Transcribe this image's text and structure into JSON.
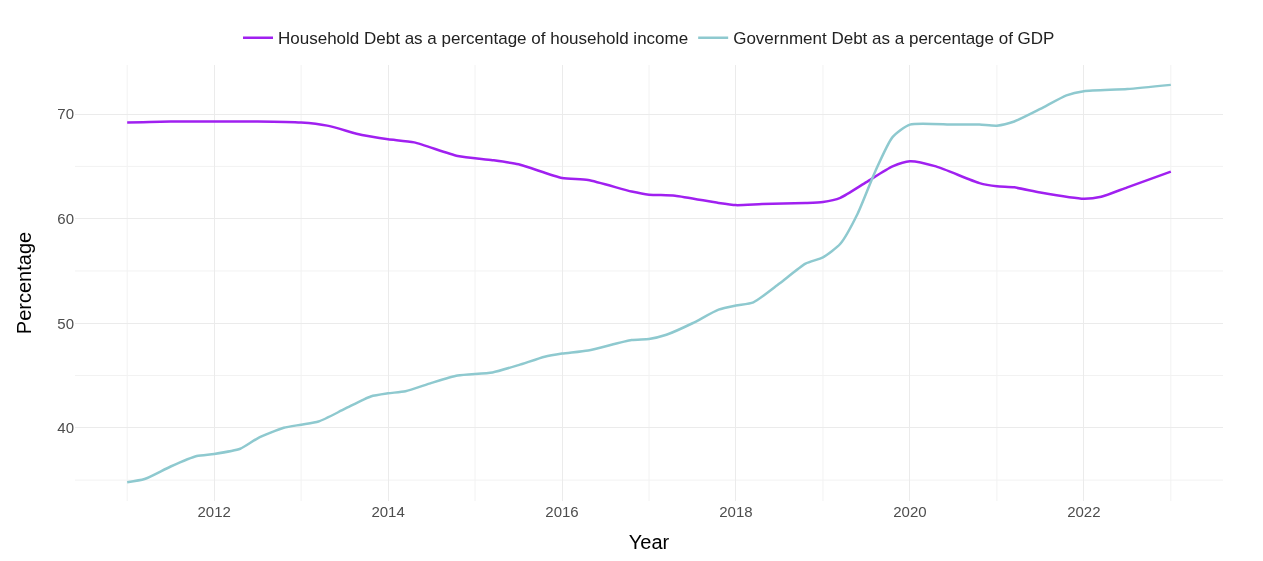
{
  "chart_data": {
    "type": "line",
    "xlabel": "Year",
    "ylabel": "Percentage",
    "xlim": [
      2010.4,
      2023.6
    ],
    "xticks": [
      2012,
      2014,
      2016,
      2018,
      2020,
      2022
    ],
    "ylim": [
      33.0,
      74.7
    ],
    "yticks": [
      40,
      50,
      60,
      70
    ],
    "grid": true,
    "legend": "top",
    "marker": "none",
    "line_style": "solid",
    "series": [
      {
        "name": "Household Debt as a percentage of household income",
        "color": "#a020f0",
        "x": [
          2011,
          2011.5,
          2012,
          2012.5,
          2013,
          2013.3,
          2013.7,
          2014,
          2014.3,
          2014.8,
          2015.2,
          2015.5,
          2016,
          2016.3,
          2016.8,
          2017,
          2017.3,
          2017.8,
          2018,
          2018.3,
          2018.8,
          2019,
          2019.2,
          2019.5,
          2019.8,
          2020,
          2020.3,
          2020.8,
          2021,
          2021.2,
          2021.5,
          2022,
          2022.2,
          2022.5,
          2023
        ],
        "values": [
          69.2,
          69.3,
          69.3,
          69.3,
          69.2,
          68.9,
          68.0,
          67.6,
          67.3,
          66.0,
          65.6,
          65.2,
          63.9,
          63.7,
          62.6,
          62.3,
          62.2,
          61.5,
          61.3,
          61.4,
          61.5,
          61.6,
          62.0,
          63.5,
          65.0,
          65.5,
          65.0,
          63.4,
          63.1,
          63.0,
          62.5,
          61.9,
          62.1,
          63.0,
          64.5
        ]
      },
      {
        "name": "Government Debt as a percentage of GDP",
        "color": "#8ec9cf",
        "x": [
          2011,
          2011.2,
          2011.5,
          2011.8,
          2012,
          2012.3,
          2012.5,
          2012.8,
          2013,
          2013.2,
          2013.5,
          2013.8,
          2014,
          2014.2,
          2014.5,
          2014.8,
          2015.2,
          2015.5,
          2015.8,
          2016,
          2016.3,
          2016.8,
          2017,
          2017.2,
          2017.5,
          2017.8,
          2018,
          2018.2,
          2018.5,
          2018.8,
          2019,
          2019.2,
          2019.4,
          2019.6,
          2019.8,
          2020,
          2020.5,
          2020.8,
          2021,
          2021.2,
          2021.5,
          2021.8,
          2022,
          2022.5,
          2023
        ],
        "values": [
          34.8,
          35.1,
          36.3,
          37.3,
          37.5,
          38.0,
          39.0,
          40.0,
          40.3,
          40.6,
          41.8,
          43.0,
          43.3,
          43.5,
          44.3,
          45.0,
          45.3,
          46.0,
          46.8,
          47.1,
          47.4,
          48.4,
          48.5,
          48.9,
          50.0,
          51.3,
          51.7,
          52.0,
          53.8,
          55.7,
          56.3,
          57.6,
          60.5,
          64.5,
          67.8,
          69.0,
          69.0,
          69.0,
          68.9,
          69.3,
          70.5,
          71.8,
          72.2,
          72.4,
          72.8
        ]
      }
    ]
  }
}
